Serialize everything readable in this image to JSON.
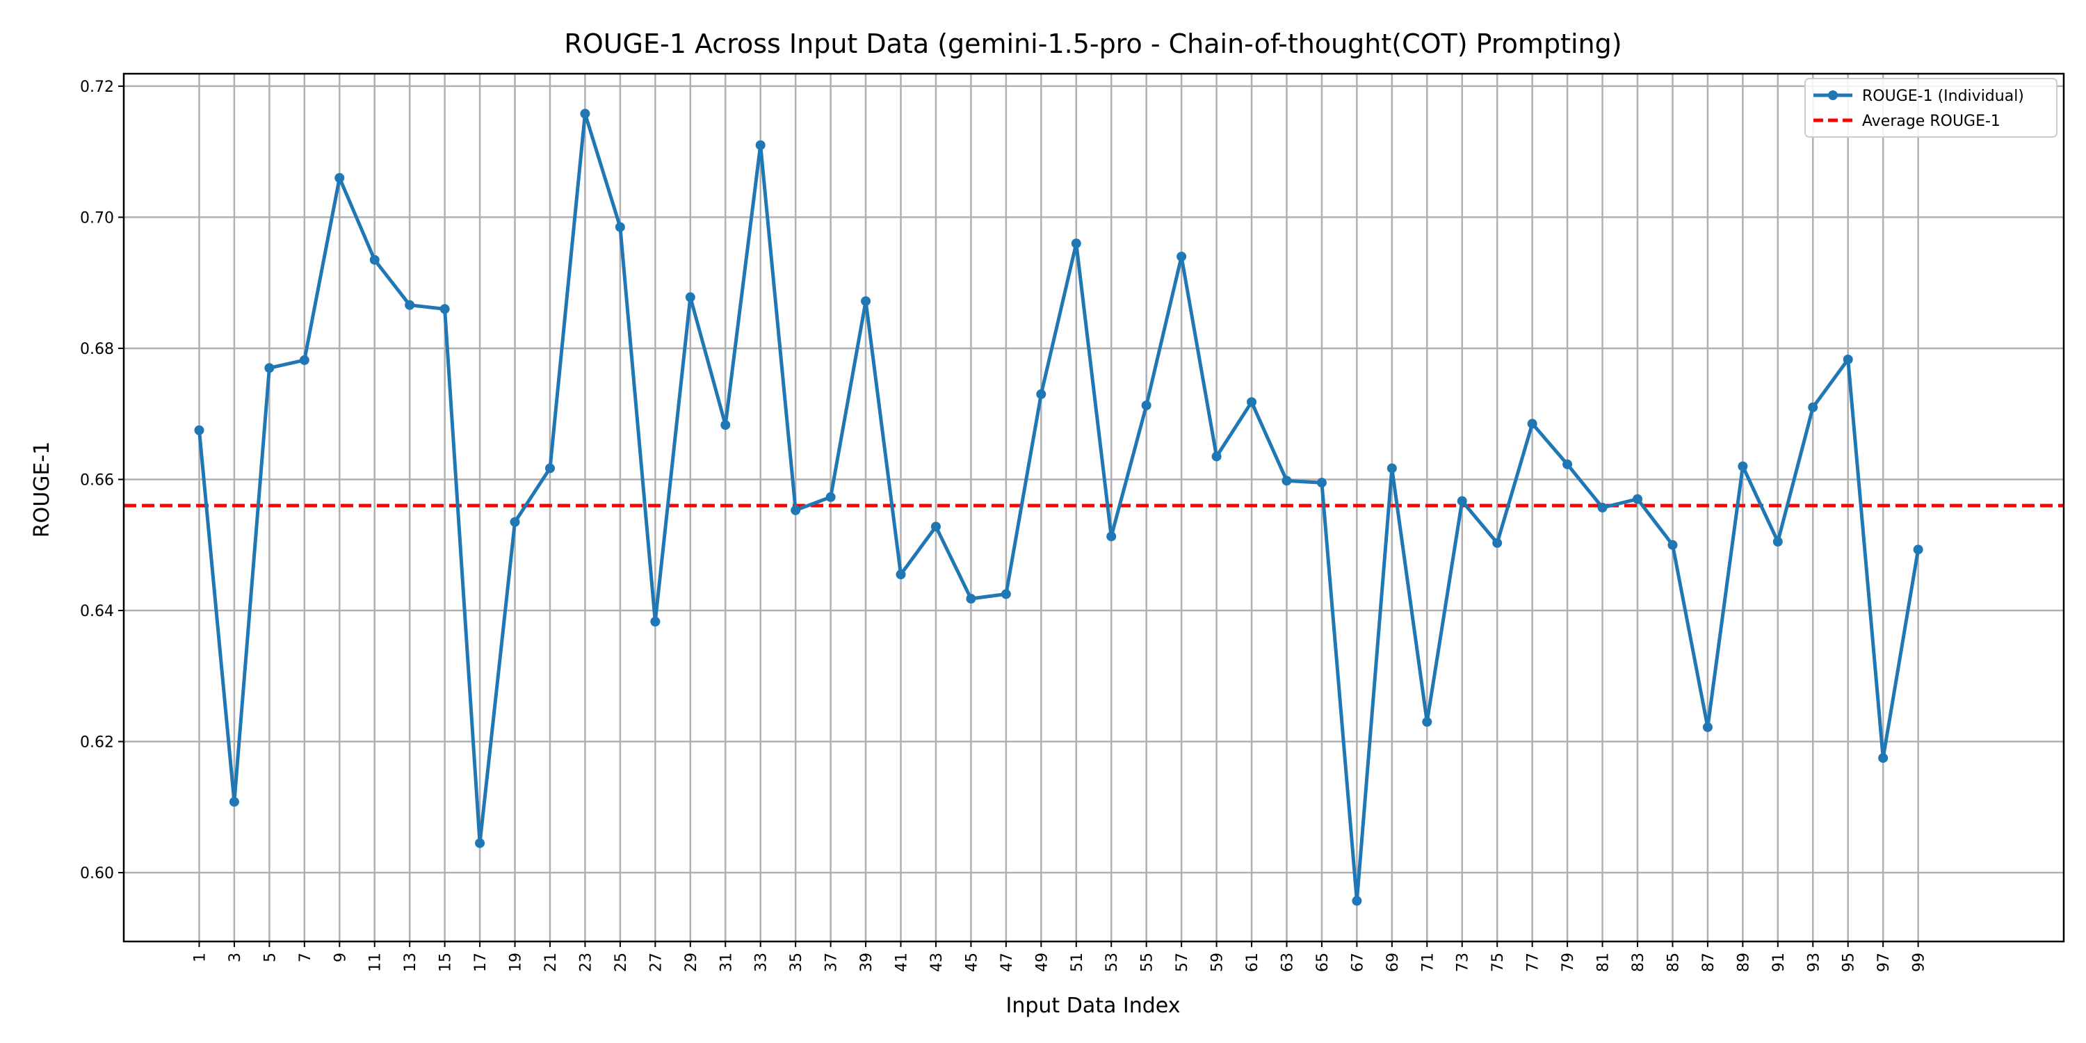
{
  "chart_data": {
    "type": "line",
    "title": "ROUGE-1 Across Input Data (gemini-1.5-pro - Chain-of-thought(COT) Prompting)",
    "xlabel": "Input Data Index",
    "ylabel": "ROUGE-1",
    "xlim": [
      -3.3,
      107.3
    ],
    "ylim": [
      0.5895,
      0.7219
    ],
    "yticks": [
      0.6,
      0.62,
      0.64,
      0.66,
      0.68,
      0.7,
      0.72
    ],
    "ytick_labels": [
      "0.60",
      "0.62",
      "0.64",
      "0.66",
      "0.68",
      "0.70",
      "0.72"
    ],
    "xticks": [
      1,
      3,
      5,
      7,
      9,
      11,
      13,
      15,
      17,
      19,
      21,
      23,
      25,
      27,
      29,
      31,
      33,
      35,
      37,
      39,
      41,
      43,
      45,
      47,
      49,
      51,
      53,
      55,
      57,
      59,
      61,
      63,
      65,
      67,
      69,
      71,
      73,
      75,
      77,
      79,
      81,
      83,
      85,
      87,
      89,
      91,
      93,
      95,
      97,
      99
    ],
    "xtick_labels": [
      "1",
      "3",
      "5",
      "7",
      "9",
      "11",
      "13",
      "15",
      "17",
      "19",
      "21",
      "23",
      "25",
      "27",
      "29",
      "31",
      "33",
      "35",
      "37",
      "39",
      "41",
      "43",
      "45",
      "47",
      "49",
      "51",
      "53",
      "55",
      "57",
      "59",
      "61",
      "63",
      "65",
      "67",
      "69",
      "71",
      "73",
      "75",
      "77",
      "79",
      "81",
      "83",
      "85",
      "87",
      "89",
      "91",
      "93",
      "95",
      "97",
      "99"
    ],
    "grid": true,
    "legend_position": "top-right",
    "series": [
      {
        "name": "ROUGE-1 (Individual)",
        "color": "#1f77b4",
        "style": "solid-with-markers",
        "x": [
          1,
          3,
          5,
          7,
          9,
          11,
          13,
          15,
          17,
          19,
          21,
          23,
          25,
          27,
          29,
          31,
          33,
          35,
          37,
          39,
          41,
          43,
          45,
          47,
          49,
          51,
          53,
          55,
          57,
          59,
          61,
          63,
          65,
          67,
          69,
          71,
          73,
          75,
          77,
          79,
          81,
          83,
          85,
          87,
          89,
          91,
          93,
          95,
          97,
          99
        ],
        "values": [
          0.6675,
          0.6108,
          0.677,
          0.6782,
          0.706,
          0.6935,
          0.6866,
          0.686,
          0.6045,
          0.6535,
          0.6617,
          0.7158,
          0.6985,
          0.6383,
          0.6878,
          0.6683,
          0.711,
          0.6553,
          0.6573,
          0.6872,
          0.6455,
          0.6528,
          0.6418,
          0.6425,
          0.673,
          0.696,
          0.6513,
          0.6713,
          0.694,
          0.6635,
          0.6718,
          0.6598,
          0.6595,
          0.5957,
          0.6617,
          0.623,
          0.6567,
          0.6503,
          0.6685,
          0.6623,
          0.6557,
          0.657,
          0.65,
          0.6222,
          0.662,
          0.6505,
          0.671,
          0.6783,
          0.6175,
          0.6493
        ]
      },
      {
        "name": "Average ROUGE-1",
        "color": "#ff0000",
        "style": "dashed",
        "value": 0.656
      }
    ]
  }
}
